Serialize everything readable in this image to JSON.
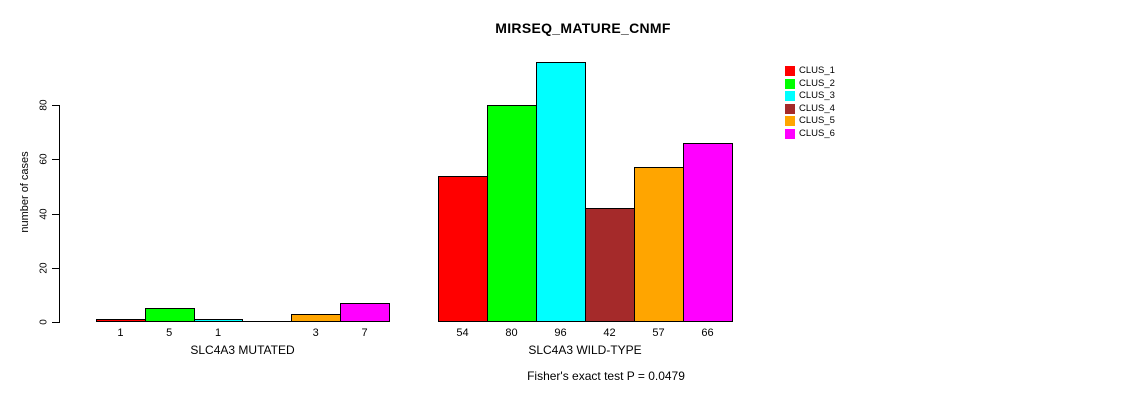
{
  "background_color": "#ffffff",
  "chart_data": {
    "type": "bar",
    "title": "MIRSEQ_MATURE_CNMF",
    "ylabel": "number of cases",
    "xlabel": "",
    "ylim": [
      0,
      100
    ],
    "yticks": [
      0,
      20,
      40,
      60,
      80
    ],
    "grid": false,
    "legend_position": "right",
    "legend": [
      {
        "label": "CLUS_1",
        "color": "#FF0000"
      },
      {
        "label": "CLUS_2",
        "color": "#00FF00"
      },
      {
        "label": "CLUS_3",
        "color": "#00FFFF"
      },
      {
        "label": "CLUS_4",
        "color": "#A52A2A"
      },
      {
        "label": "CLUS_5",
        "color": "#FFA500"
      },
      {
        "label": "CLUS_6",
        "color": "#FF00FF"
      }
    ],
    "groups": [
      {
        "label": "SLC4A3 MUTATED",
        "values": [
          1,
          5,
          1,
          0,
          3,
          7
        ],
        "bar_labels": [
          "1",
          "5",
          "1",
          "",
          "3",
          "7"
        ]
      },
      {
        "label": "SLC4A3 WILD-TYPE",
        "values": [
          54,
          80,
          96,
          42,
          57,
          66
        ],
        "bar_labels": [
          "54",
          "80",
          "96",
          "42",
          "57",
          "66"
        ]
      }
    ],
    "footnote": "Fisher's exact test P = 0.0479"
  }
}
